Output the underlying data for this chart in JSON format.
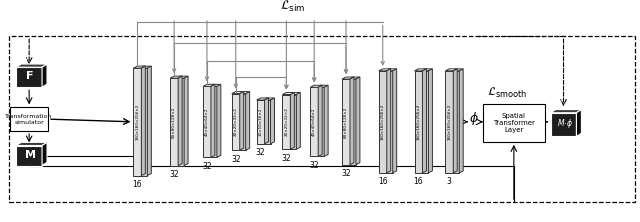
{
  "figsize": [
    6.4,
    2.22
  ],
  "dpi": 100,
  "loss_sim": "$\\mathcal{L}_{\\mathrm{sim}}$",
  "loss_smooth": "$\\mathcal{L}_{\\mathrm{smooth}}$",
  "phi": "$\\phi$",
  "mphi": "$M{\\cdot}\\phi$",
  "F_label": "F",
  "M_label": "M",
  "transformer_label": "Spatial\nTransformer\nLayer",
  "transform_sim_label": "Transformation\nsimulator",
  "enc_layer_labels": [
    "160×160×256×2",
    "80×80×128×2",
    "40×40×64×2",
    "20×20×32×2",
    "10×10×16×2"
  ],
  "dec_layer_labels": [
    "20×20×32×2",
    "40×40×64×2",
    "80×80×128×2",
    "160×160×256×2",
    "160×160×256×2",
    "160×160×256×2"
  ],
  "enc_ch": [
    "16",
    "32",
    "32",
    "32",
    "32"
  ],
  "dec_ch": [
    "32",
    "32",
    "32",
    "16",
    "16",
    "3"
  ],
  "bg": "#ffffff",
  "dark_fc": "#1e1e1e",
  "dark_top": "#3c3c3c",
  "dark_right": "#0a0a0a",
  "slab_light": "#e2e2e2",
  "slab_white": "#f8f8f8",
  "slab_mid": "#c0c0c0",
  "slab_dark_fc": "#b8b8b8",
  "edge_color": "#333333"
}
